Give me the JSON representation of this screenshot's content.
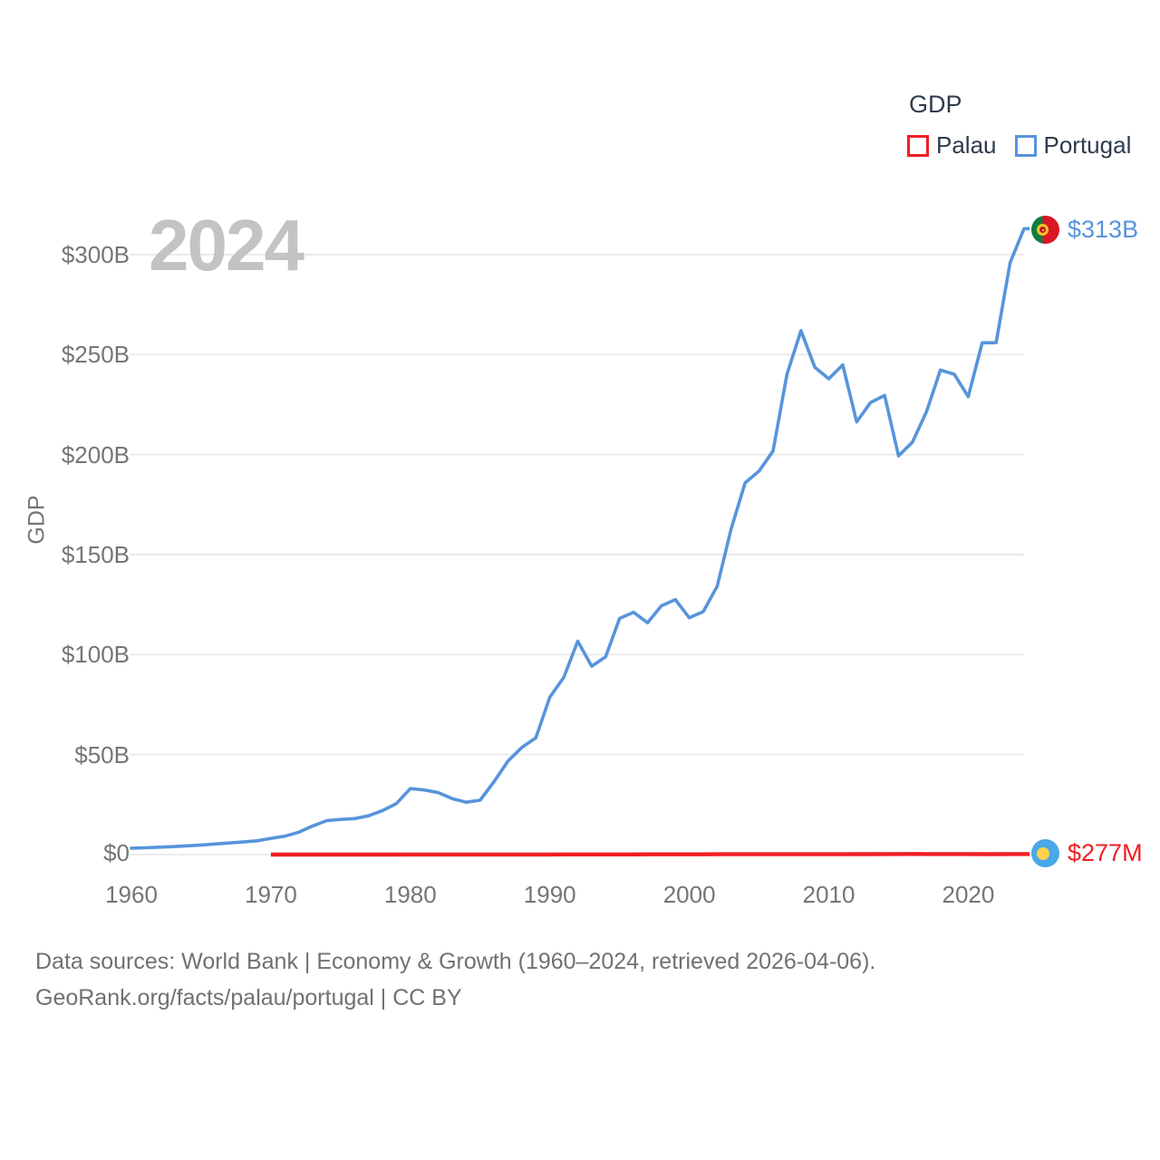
{
  "watermark": "2024",
  "legend": {
    "title": "GDP",
    "items": [
      {
        "label": "Palau",
        "color": "#f01e23"
      },
      {
        "label": "Portugal",
        "color": "#5794db"
      }
    ]
  },
  "y_axis": {
    "title": "GDP",
    "tick_labels": [
      "$0",
      "$50B",
      "$100B",
      "$150B",
      "$200B",
      "$250B",
      "$300B"
    ]
  },
  "x_axis": {
    "tick_labels": [
      "1960",
      "1970",
      "1980",
      "1990",
      "2000",
      "2010",
      "2020"
    ]
  },
  "end_labels": {
    "portugal": "$313B",
    "palau": "$277M"
  },
  "footer": {
    "line1": "Data sources: World Bank | Economy & Growth (1960–2024, retrieved 2026-04-06).",
    "line2": "GeoRank.org/facts/palau/portugal | CC BY"
  },
  "colors": {
    "portugal_line": "#5794db",
    "palau_line": "#f01e23",
    "grid": "#ebebeb",
    "tick_text": "#757575",
    "legend_text": "#2e3b4e",
    "watermark": "#c3c3c3",
    "footer_text": "#717171"
  },
  "chart_data": {
    "type": "line",
    "title": "GDP",
    "xlabel": "",
    "ylabel": "GDP",
    "x_range": [
      1960,
      2024
    ],
    "x_ticks": [
      1960,
      1970,
      1980,
      1990,
      2000,
      2010,
      2020
    ],
    "y_ticks_billions": [
      0,
      50,
      100,
      150,
      200,
      250,
      300
    ],
    "ylim_billions": [
      0,
      300
    ],
    "grid": "horizontal",
    "legend_position": "top-right",
    "series": [
      {
        "name": "Portugal",
        "color": "#5794db",
        "unit": "USD billions",
        "start_year": 1960,
        "end_year": 2024,
        "end_label": "$313B",
        "values_billions": [
          3.2,
          3.4,
          3.7,
          4.0,
          4.4,
          4.8,
          5.3,
          5.8,
          6.3,
          6.9,
          8.1,
          9.2,
          11.2,
          14.3,
          17.0,
          17.6,
          18.0,
          19.4,
          22.0,
          25.5,
          33.0,
          32.3,
          31.0,
          28.0,
          26.2,
          27.2,
          36.5,
          46.7,
          53.6,
          58.4,
          78.7,
          88.6,
          106.7,
          94.2,
          98.9,
          118.1,
          121.2,
          115.9,
          124.4,
          127.5,
          118.4,
          121.5,
          134.2,
          162.9,
          185.9,
          191.8,
          201.8,
          240.2,
          262.0,
          243.7,
          237.9,
          244.9,
          216.4,
          226.1,
          229.6,
          199.4,
          206.3,
          221.4,
          242.3,
          240.2,
          229.0,
          255.9,
          256.0,
          296.0,
          313.0
        ]
      },
      {
        "name": "Palau",
        "color": "#f01e23",
        "unit": "USD millions",
        "start_year": 1970,
        "end_year": 2024,
        "end_label": "$277M",
        "values_millions": [
          8,
          9,
          10,
          11,
          13,
          14,
          16,
          17,
          19,
          21,
          23,
          25,
          28,
          31,
          34,
          37,
          41,
          45,
          50,
          56,
          63,
          71,
          79,
          85,
          91,
          105,
          112,
          115,
          114,
          116,
          150,
          155,
          161,
          170,
          179,
          188,
          191,
          193,
          186,
          181,
          185,
          196,
          210,
          222,
          251,
          287,
          300,
          290,
          284,
          282,
          264,
          218,
          226,
          263,
          277
        ]
      }
    ]
  }
}
